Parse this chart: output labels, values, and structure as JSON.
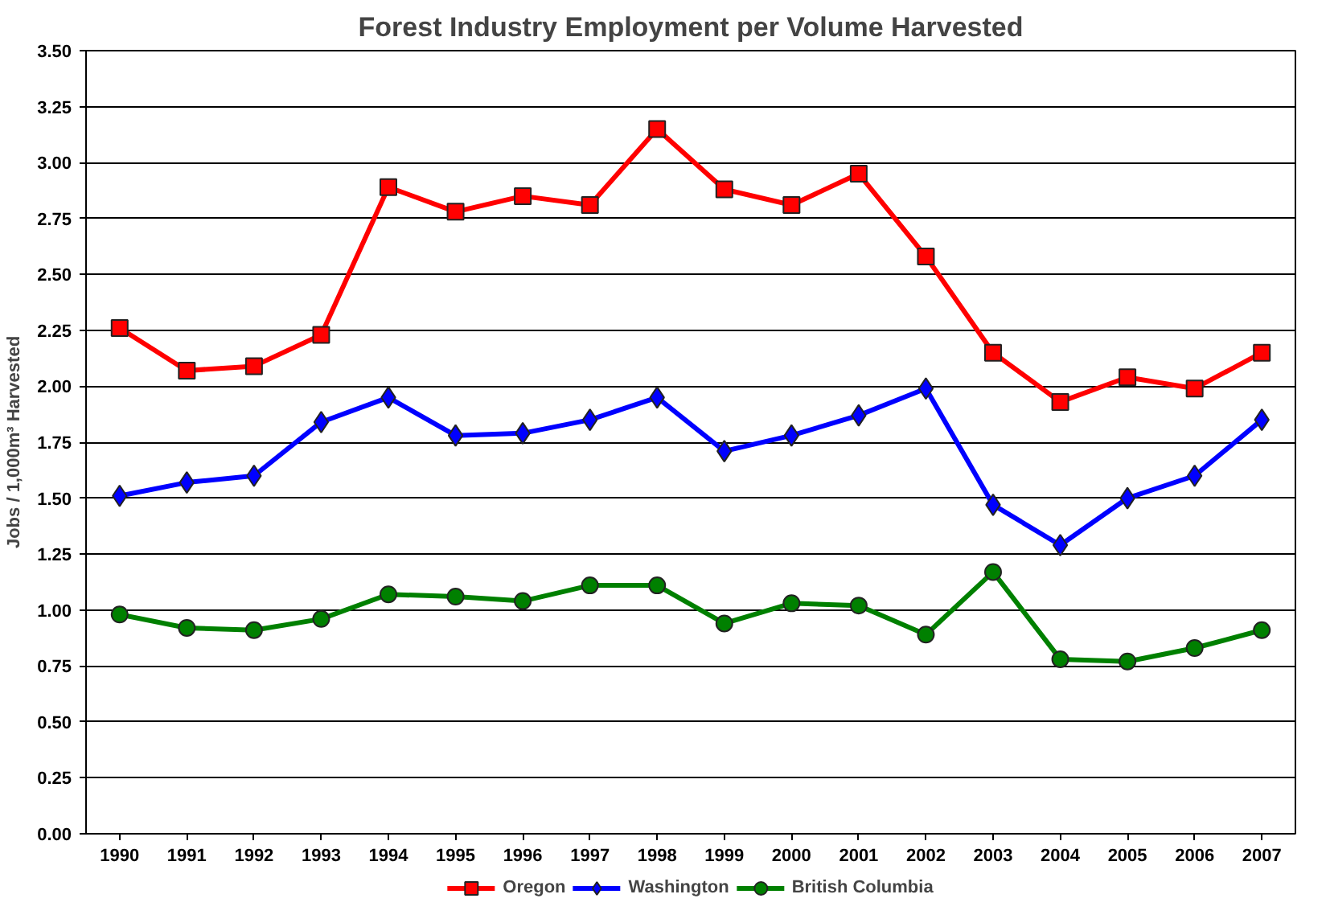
{
  "chart_data": {
    "type": "line",
    "title": "Forest Industry Employment per Volume Harvested",
    "ylabel": "Jobs / 1,000m³ Harvested",
    "categories": [
      "1990",
      "1991",
      "1992",
      "1993",
      "1994",
      "1995",
      "1996",
      "1997",
      "1998",
      "1999",
      "2000",
      "2001",
      "2002",
      "2003",
      "2004",
      "2005",
      "2006",
      "2007"
    ],
    "ylim": [
      0,
      3.5
    ],
    "yticks": [
      {
        "value": 0,
        "label": "0.00"
      },
      {
        "value": 0.25,
        "label": "0.25"
      },
      {
        "value": 0.5,
        "label": "0.50"
      },
      {
        "value": 0.75,
        "label": "0.75"
      },
      {
        "value": 1,
        "label": "1.00"
      },
      {
        "value": 1.25,
        "label": "1.25"
      },
      {
        "value": 1.5,
        "label": "1.50"
      },
      {
        "value": 1.75,
        "label": "1.75"
      },
      {
        "value": 2,
        "label": "2.00"
      },
      {
        "value": 2.25,
        "label": "2.25"
      },
      {
        "value": 2.5,
        "label": "2.50"
      },
      {
        "value": 2.75,
        "label": "2.75"
      },
      {
        "value": 3,
        "label": "3.00"
      },
      {
        "value": 3.25,
        "label": "3.25"
      },
      {
        "value": 3.5,
        "label": "3.50"
      }
    ],
    "grid": "y",
    "legend": "bottom",
    "line_style": "solid",
    "series": [
      {
        "name": "Oregon",
        "color": "#ff0000",
        "marker": "square",
        "values": [
          2.26,
          2.07,
          2.09,
          2.23,
          2.89,
          2.78,
          2.85,
          2.81,
          3.15,
          2.88,
          2.81,
          2.95,
          2.58,
          2.15,
          1.93,
          2.04,
          1.99,
          2.15
        ]
      },
      {
        "name": "Washington",
        "color": "#0000ff",
        "marker": "diamond",
        "values": [
          1.51,
          1.57,
          1.6,
          1.84,
          1.95,
          1.78,
          1.79,
          1.85,
          1.95,
          1.71,
          1.78,
          1.87,
          1.99,
          1.47,
          1.29,
          1.5,
          1.6,
          1.85
        ]
      },
      {
        "name": "British Columbia",
        "color": "#008000",
        "marker": "circle",
        "values": [
          0.98,
          0.92,
          0.91,
          0.96,
          1.07,
          1.06,
          1.04,
          1.11,
          1.11,
          0.94,
          1.03,
          1.02,
          0.89,
          1.17,
          0.78,
          0.77,
          0.83,
          0.91
        ]
      }
    ]
  }
}
